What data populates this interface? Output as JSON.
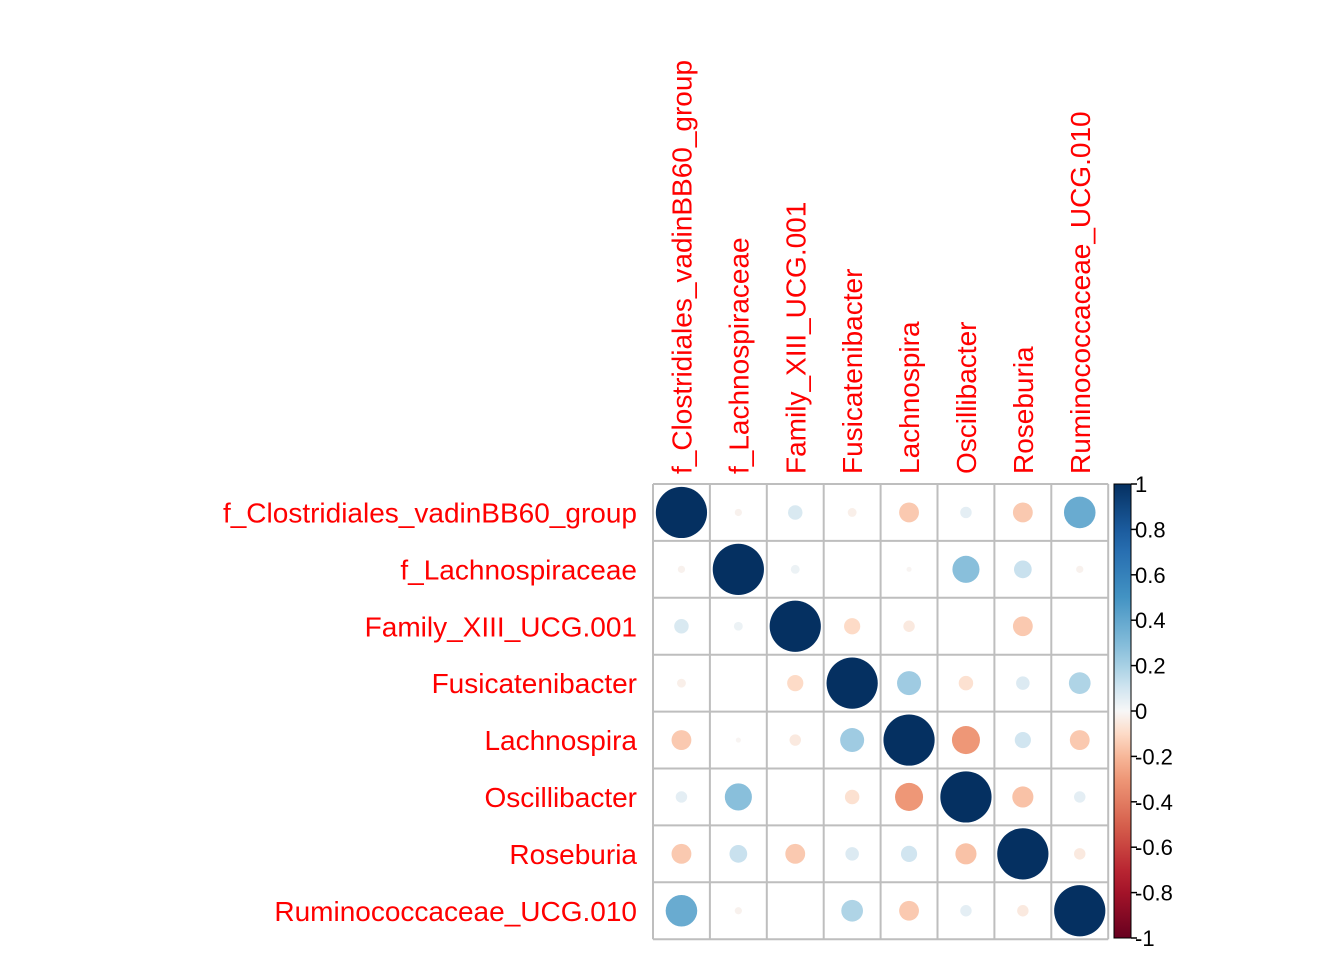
{
  "chart_data": {
    "type": "heatmap",
    "subtype": "correlation-circle-matrix",
    "variables": [
      "f_Clostridiales_vadinBB60_group",
      "f_Lachnospiraceae",
      "Family_XIII_UCG.001",
      "Fusicatenibacter",
      "Lachnospira",
      "Oscillibacter",
      "Roseburia",
      "Ruminococcaceae_UCG.010"
    ],
    "matrix": [
      [
        1.0,
        -0.02,
        0.08,
        -0.03,
        -0.15,
        0.05,
        -0.15,
        0.38
      ],
      [
        -0.02,
        1.0,
        0.03,
        0.0,
        -0.01,
        0.28,
        0.12,
        -0.02
      ],
      [
        0.08,
        0.03,
        1.0,
        -0.1,
        -0.05,
        0.0,
        -0.15,
        0.0
      ],
      [
        -0.03,
        0.0,
        -0.1,
        1.0,
        0.22,
        -0.08,
        0.07,
        0.18
      ],
      [
        -0.15,
        -0.01,
        -0.05,
        0.22,
        1.0,
        -0.3,
        0.1,
        -0.15
      ],
      [
        0.05,
        0.28,
        0.0,
        -0.08,
        -0.3,
        1.0,
        -0.17,
        0.05
      ],
      [
        -0.15,
        0.12,
        -0.15,
        0.07,
        0.1,
        -0.17,
        1.0,
        -0.05
      ],
      [
        0.38,
        -0.02,
        0.0,
        0.18,
        -0.15,
        0.05,
        -0.05,
        1.0
      ]
    ],
    "colorbar": {
      "ticks": [
        "1",
        "0.8",
        "0.6",
        "0.4",
        "0.2",
        "0",
        "-0.2",
        "-0.4",
        "-0.6",
        "-0.8",
        "-1"
      ],
      "range": [
        -1,
        1
      ],
      "low_color": "#67001F",
      "mid_color": "#F7F7F7",
      "high_color": "#053061"
    },
    "label_color": "#FF0000",
    "grid_color": "#BEBEBE"
  }
}
